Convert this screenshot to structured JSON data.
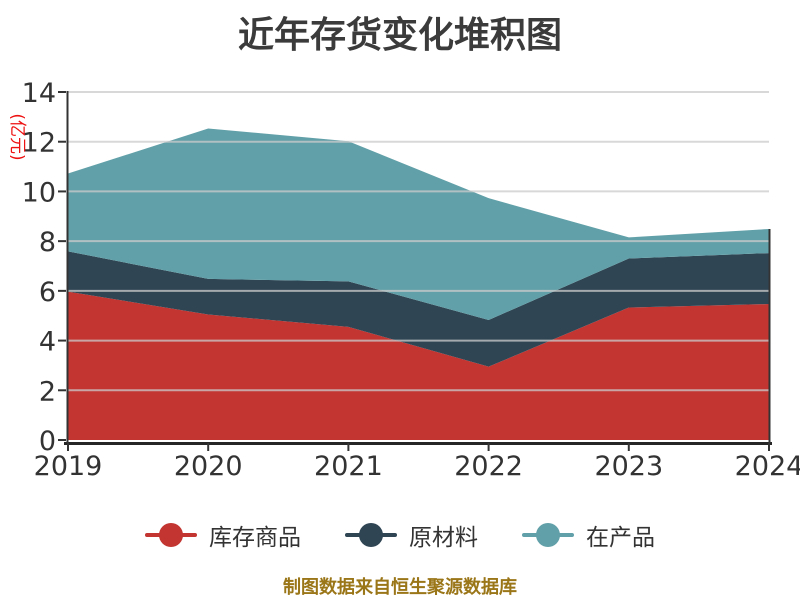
{
  "title": "近年存货变化堆积图",
  "footer": "制图数据来自恒生聚源数据库",
  "y_axis": {
    "name": "(亿元)",
    "name_color": "#ee1111",
    "ticks": [
      0,
      2,
      4,
      6,
      8,
      10,
      12,
      14
    ],
    "max": 14
  },
  "x_axis": {
    "categories": [
      "2019",
      "2020",
      "2021",
      "2022",
      "2023",
      "2024"
    ]
  },
  "legend": {
    "items": [
      {
        "label": "库存商品",
        "color": "#c23531"
      },
      {
        "label": "原材料",
        "color": "#2f4554"
      },
      {
        "label": "在产品",
        "color": "#61a0a8"
      }
    ]
  },
  "colors": {
    "background": "#ffffff",
    "grid": "#cccccc",
    "axis": "#333333",
    "tick_text": "#333333",
    "title_text": "#3b3b3b",
    "footer_text": "#9b7618"
  },
  "chart_data": {
    "type": "area",
    "stacked": true,
    "title": "近年存货变化堆积图",
    "x": [
      "2019",
      "2020",
      "2021",
      "2022",
      "2023",
      "2024"
    ],
    "xlabel": "",
    "ylabel": "(亿元)",
    "ylim": [
      0,
      14
    ],
    "grid": true,
    "legend_position": "bottom",
    "series": [
      {
        "name": "库存商品",
        "color": "#c23531",
        "values": [
          5.97,
          5.05,
          4.55,
          2.95,
          5.33,
          5.47
        ]
      },
      {
        "name": "原材料",
        "color": "#2f4554",
        "values": [
          1.62,
          1.43,
          1.83,
          1.88,
          1.97,
          2.05
        ]
      },
      {
        "name": "在产品",
        "color": "#61a0a8",
        "values": [
          3.13,
          6.05,
          5.64,
          4.9,
          0.85,
          0.97
        ]
      }
    ],
    "stack_totals": [
      10.72,
      12.53,
      12.02,
      9.73,
      8.15,
      8.49
    ]
  }
}
